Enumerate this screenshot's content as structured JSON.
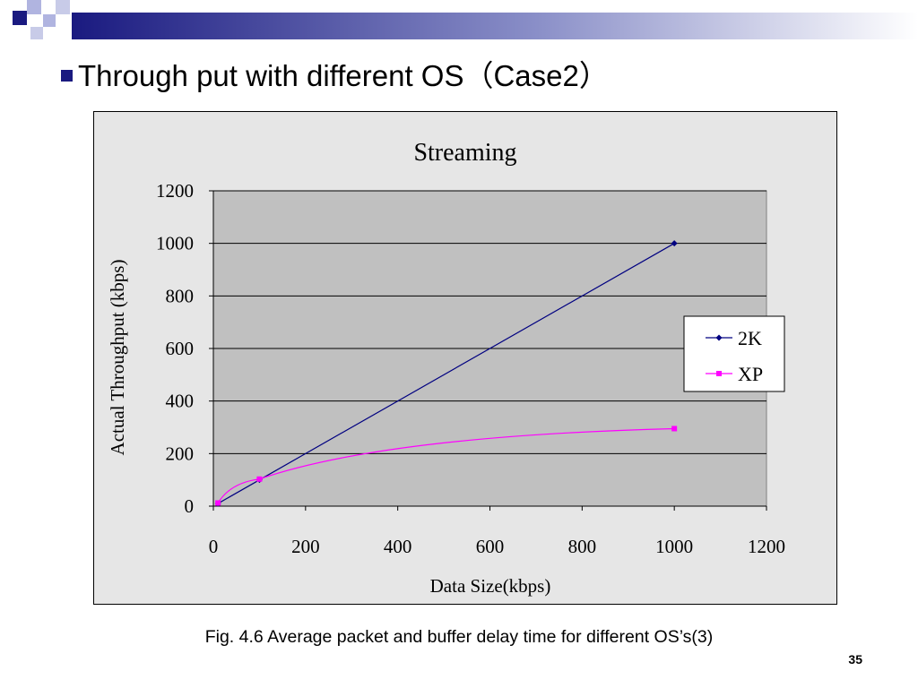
{
  "slide": {
    "title": "Through put with different OS（Case2）",
    "caption": "Fig. 4.6 Average packet and buffer delay time for different OS’s(3)",
    "page_number": "35"
  },
  "colors": {
    "header_dark": "#1a1a80",
    "header_light": "#9aa0d8",
    "plot_area": "#c0c0c0",
    "chart_area": "#e6e6e6",
    "series_2k": "#000080",
    "series_xp": "#ff00ff"
  },
  "chart_data": {
    "type": "scatter",
    "title": "Streaming",
    "xlabel": "Data Size(kbps)",
    "ylabel": "Actual Throughput (kbps)",
    "xlim": [
      0,
      1200
    ],
    "ylim": [
      0,
      1200
    ],
    "xticks": [
      0,
      200,
      400,
      600,
      800,
      1000,
      1200
    ],
    "yticks": [
      0,
      200,
      400,
      600,
      800,
      1000,
      1200
    ],
    "grid": "horizontal",
    "legend_position": "right",
    "series": [
      {
        "name": "2K",
        "marker": "diamond",
        "color": "#000080",
        "x": [
          10,
          100,
          1000
        ],
        "y": [
          10,
          100,
          1000
        ]
      },
      {
        "name": "XP",
        "marker": "square",
        "color": "#ff00ff",
        "x": [
          10,
          100,
          1000
        ],
        "y": [
          12,
          103,
          295
        ]
      }
    ]
  }
}
